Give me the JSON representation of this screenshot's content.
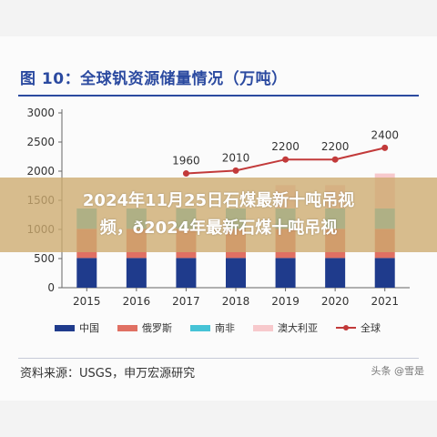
{
  "title": "图 10：全球钒资源储量情况（万吨）",
  "source": "资料来源：USGS，申万宏源研究",
  "watermark": "头条 @雪是",
  "overlay_text": "2024年11月25日石煤最新十吨吊视\n频，ð2024年最新石煤十吨吊视",
  "colors": {
    "china": "#1f3b8c",
    "russia": "#e07063",
    "south_africa": "#46c3d6",
    "australia": "#f7c9cc",
    "global": "#c23a3a"
  },
  "chart_data": {
    "type": "bar",
    "stacked": true,
    "categories": [
      "2015",
      "2016",
      "2017",
      "2018",
      "2019",
      "2020",
      "2021"
    ],
    "series": [
      {
        "name": "中国",
        "values": [
          510,
          510,
          510,
          510,
          510,
          510,
          510
        ]
      },
      {
        "name": "俄罗斯",
        "values": [
          500,
          500,
          500,
          500,
          500,
          500,
          500
        ]
      },
      {
        "name": "南非",
        "values": [
          350,
          350,
          350,
          350,
          350,
          350,
          350
        ]
      },
      {
        "name": "澳大利亚",
        "values": [
          0,
          0,
          0,
          0,
          400,
          400,
          600
        ]
      }
    ],
    "line_series": {
      "name": "全球",
      "values": [
        null,
        null,
        1960,
        2010,
        2200,
        2200,
        2400
      ]
    },
    "ylim": [
      0,
      3000
    ],
    "yticks": [
      "0",
      "500",
      "1000",
      "1500",
      "2000",
      "2500",
      "3000"
    ],
    "grid": false,
    "legend_position": "bottom"
  }
}
